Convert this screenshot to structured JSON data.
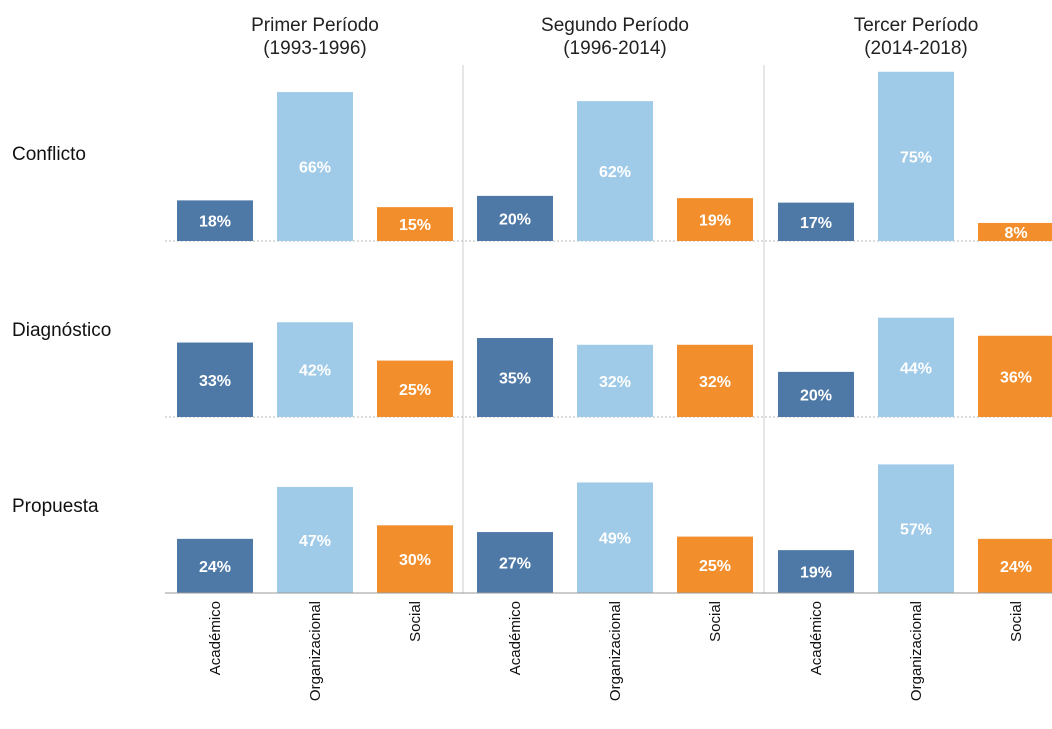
{
  "chart_data": {
    "type": "bar",
    "columns": [
      {
        "title": "Primer Período",
        "subtitle": "(1993-1996)"
      },
      {
        "title": "Segundo Período",
        "subtitle": "(1996-2014)"
      },
      {
        "title": "Tercer Período",
        "subtitle": "(2014-2018)"
      }
    ],
    "rows": [
      "Conflicto",
      "Diagnóstico",
      "Propuesta"
    ],
    "categories": [
      "Académico",
      "Organizacional",
      "Social"
    ],
    "colors": [
      "#4e79a7",
      "#a0cbe8",
      "#f28e2b"
    ],
    "ylim": [
      0,
      78
    ],
    "values": [
      [
        [
          18,
          66,
          15
        ],
        [
          20,
          62,
          19
        ],
        [
          17,
          75,
          8
        ]
      ],
      [
        [
          33,
          42,
          25
        ],
        [
          35,
          32,
          32
        ],
        [
          20,
          44,
          36
        ]
      ],
      [
        [
          24,
          47,
          30
        ],
        [
          27,
          49,
          25
        ],
        [
          19,
          57,
          24
        ]
      ]
    ],
    "value_labels": [
      [
        [
          "18%",
          "66%",
          "15%"
        ],
        [
          "20%",
          "62%",
          "19%"
        ],
        [
          "17%",
          "75%",
          "8%"
        ]
      ],
      [
        [
          "33%",
          "42%",
          "25%"
        ],
        [
          "35%",
          "32%",
          "32%"
        ],
        [
          "20%",
          "44%",
          "36%"
        ]
      ],
      [
        [
          "24%",
          "47%",
          "30%"
        ],
        [
          "27%",
          "49%",
          "25%"
        ],
        [
          "19%",
          "57%",
          "24%"
        ]
      ]
    ]
  }
}
